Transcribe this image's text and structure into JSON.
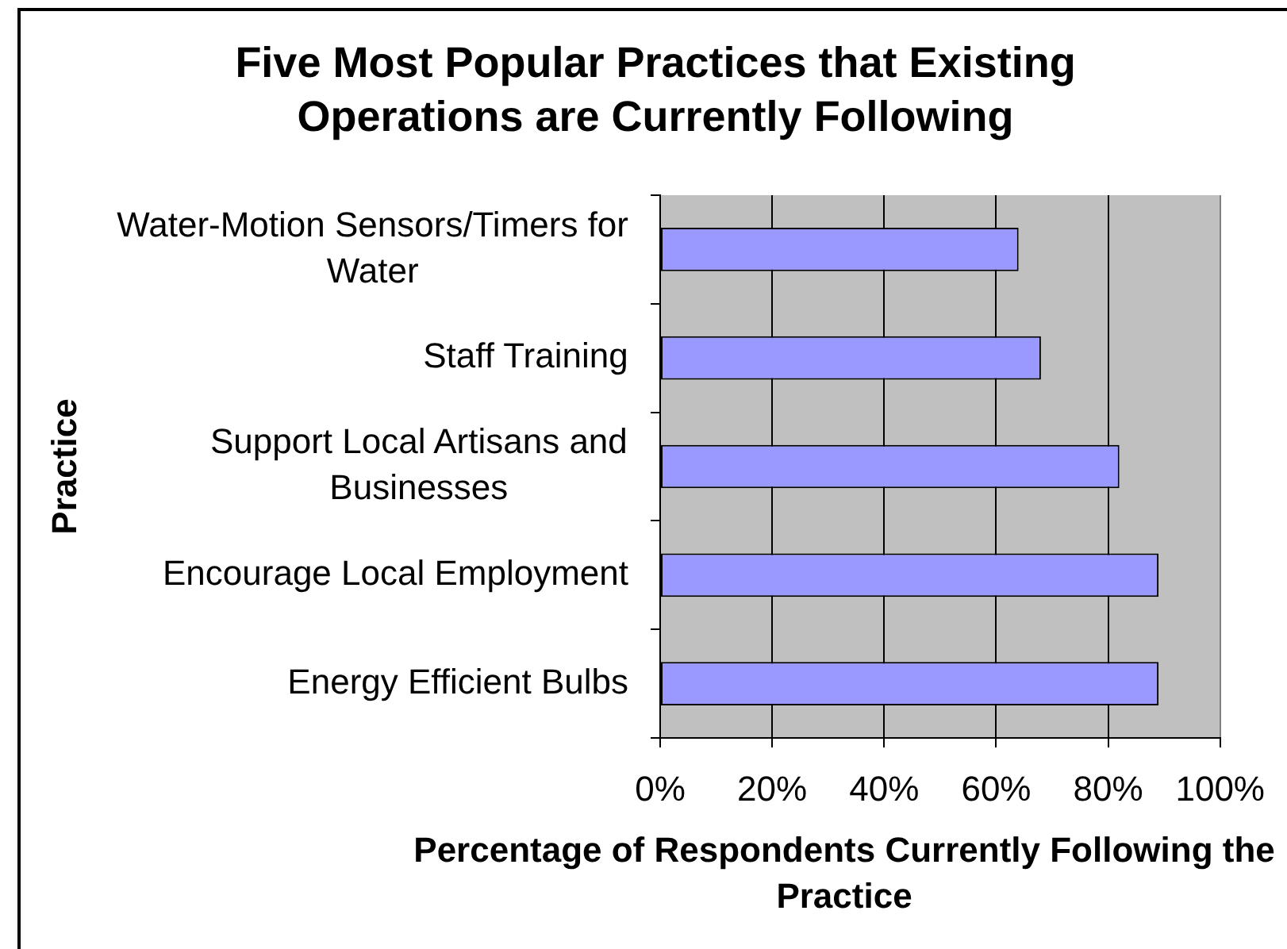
{
  "chart_data": {
    "type": "bar",
    "orientation": "horizontal",
    "title": "Five Most Popular Practices that Existing Operations are Currently Following",
    "xlabel": "Percentage of Respondents Currently Following the Practice",
    "ylabel": "Practice",
    "categories": [
      "Water-Motion Sensors/Timers for Water",
      "Staff Training",
      "Support Local Artisans and Businesses",
      "Encourage Local Employment",
      "Energy Efficient Bulbs"
    ],
    "values": [
      64,
      68,
      82,
      89,
      89
    ],
    "color": "#9999ff",
    "xlim": [
      0,
      100
    ],
    "xticks": [
      {
        "value": 0,
        "label": "0%"
      },
      {
        "value": 20,
        "label": "20%"
      },
      {
        "value": 40,
        "label": "40%"
      },
      {
        "value": 60,
        "label": "60%"
      },
      {
        "value": 80,
        "label": "80%"
      },
      {
        "value": 100,
        "label": "100%"
      }
    ],
    "grid": "x",
    "legend": false
  }
}
